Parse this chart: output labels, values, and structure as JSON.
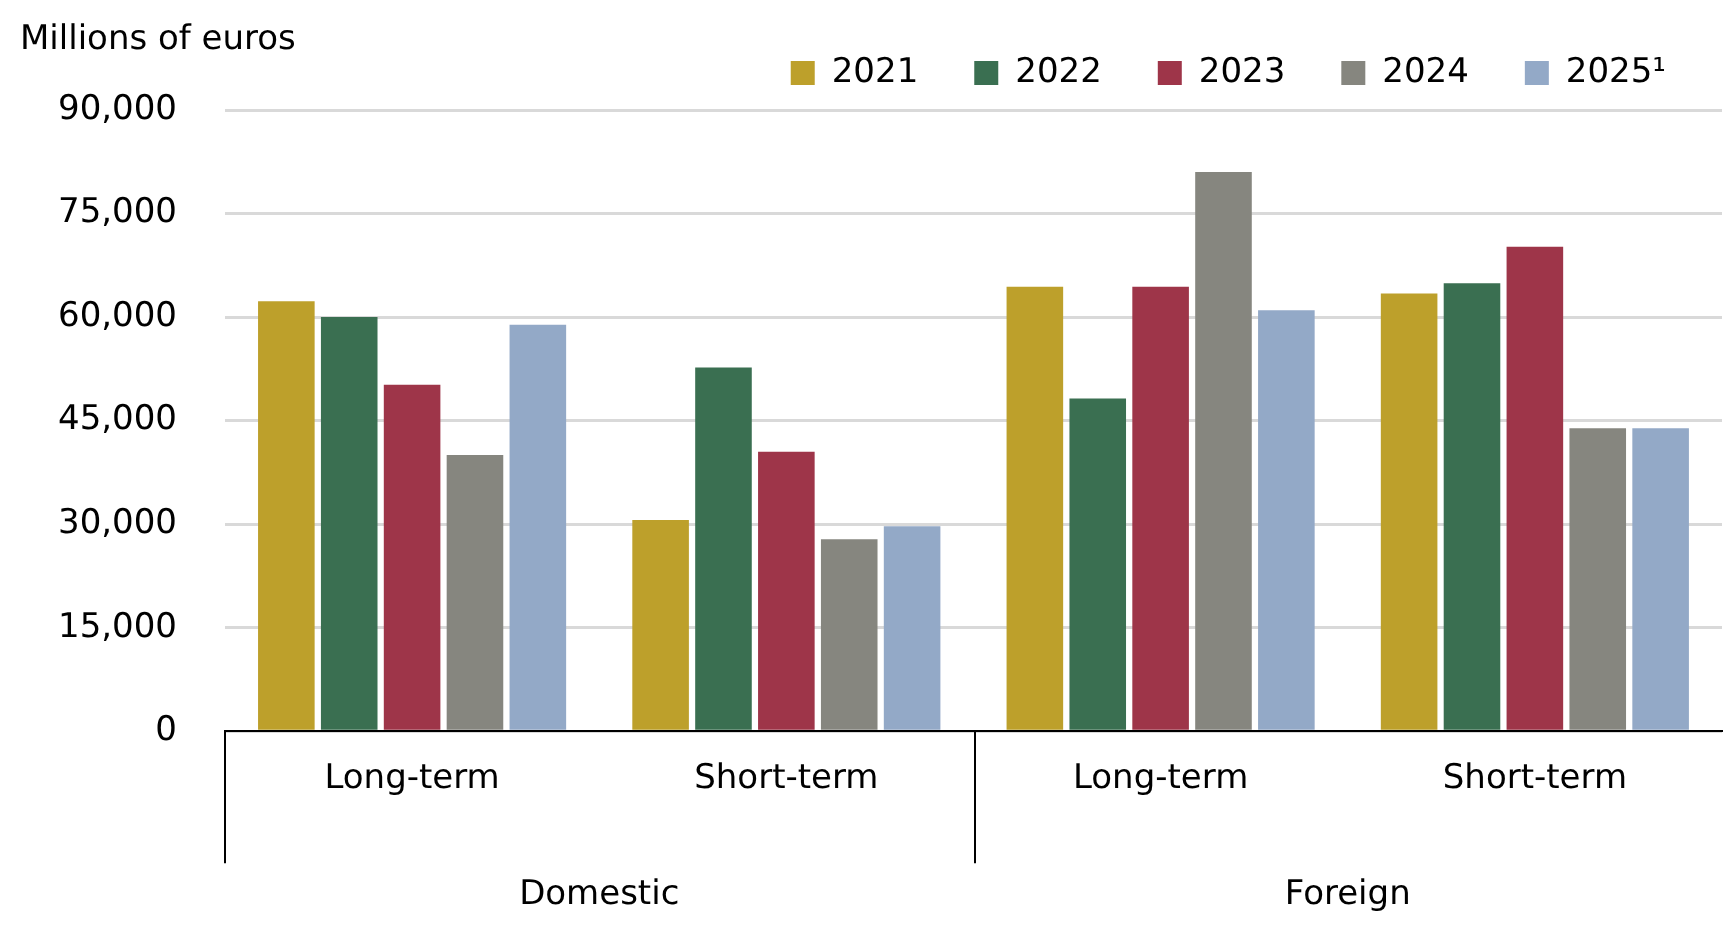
{
  "chart_data": {
    "type": "bar",
    "ylabel": "Millions of euros",
    "categories": [
      "Long-term",
      "Short-term",
      "Long-term",
      "Short-term"
    ],
    "annotations": [
      "Domestic",
      "Foreign"
    ],
    "series": [
      {
        "name": "2021",
        "color": "#bda02b",
        "values": [
          62300,
          30600,
          64400,
          63400
        ]
      },
      {
        "name": "2022",
        "color": "#3a6f51",
        "values": [
          60000,
          52700,
          48200,
          64900
        ]
      },
      {
        "name": "2023",
        "color": "#9e3549",
        "values": [
          50200,
          40500,
          64400,
          70200
        ]
      },
      {
        "name": "2024",
        "color": "#86867f",
        "values": [
          40000,
          27800,
          81000,
          43900
        ]
      },
      {
        "name": "2025¹",
        "color": "#93a9c7",
        "values": [
          58900,
          29700,
          61000,
          43900
        ]
      }
    ],
    "ylim": [
      0,
      90000
    ],
    "yticks": [
      0,
      {
        "value": 15000,
        "label": "15,000"
      },
      {
        "value": 30000,
        "label": "30,000"
      },
      {
        "value": 45000,
        "label": "45,000"
      },
      {
        "value": 60000,
        "label": "60,000"
      },
      {
        "value": 75000,
        "label": "75,000"
      },
      {
        "value": 90000,
        "label": "90,000"
      }
    ],
    "grid": "y",
    "legend": "top right"
  }
}
